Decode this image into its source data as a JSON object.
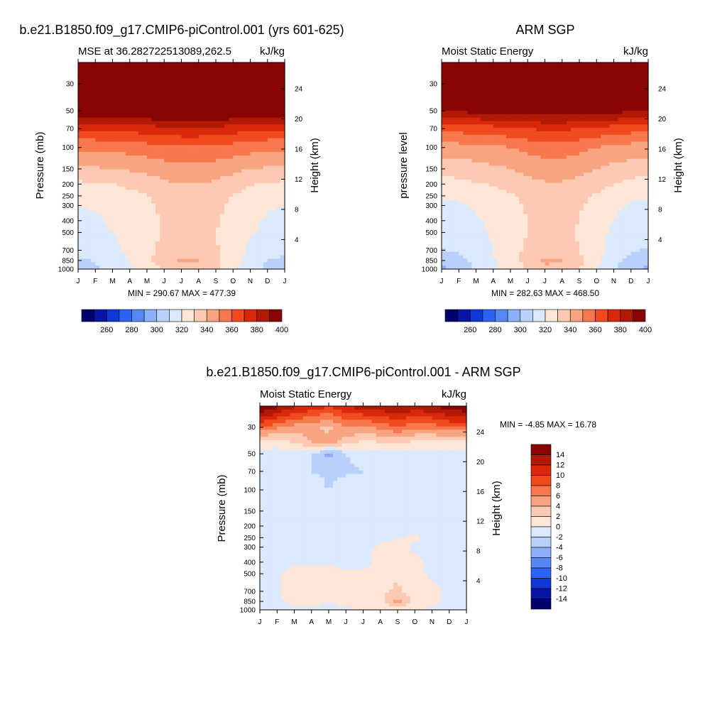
{
  "chart_data": [
    {
      "type": "heatmap",
      "title": "b.e21.B1850.f09_g17.CMIP6-piControl.001 (yrs 601-625)",
      "left_subtitle": "MSE at 36.282722513089,262.5",
      "right_subtitle": "kJ/kg",
      "ylabel": "Pressure (mb)",
      "ylabel_right": "Height (km)",
      "x_ticks": [
        "J",
        "F",
        "M",
        "A",
        "M",
        "J",
        "J",
        "A",
        "S",
        "O",
        "N",
        "D",
        "J"
      ],
      "y_ticks": [
        30,
        50,
        70,
        100,
        150,
        200,
        250,
        300,
        400,
        500,
        700,
        850,
        1000
      ],
      "y_ticks_right": [
        24,
        20,
        16,
        12,
        8,
        4
      ],
      "ylim": [
        1000,
        20
      ],
      "stats": "MIN = 290.67 MAX = 477.39",
      "colorbar_ticks": [
        260,
        280,
        300,
        320,
        340,
        360,
        380,
        400
      ],
      "colorbar_colors": [
        "#02006b",
        "#0a15a6",
        "#1336d6",
        "#2b63f2",
        "#5588f5",
        "#8daff8",
        "#b9d0fb",
        "#dbe9fc",
        "#fde6d8",
        "#fccab2",
        "#f9a480",
        "#f7784d",
        "#f04a1e",
        "#d9280b",
        "#b01a04",
        "#880503"
      ],
      "rows_by_pressure": [
        {
          "p": 1000,
          "v": [
            306,
            308,
            314,
            318,
            326,
            331,
            338,
            338,
            331,
            322,
            314,
            308,
            306
          ]
        },
        {
          "p": 850,
          "v": [
            308,
            311,
            315,
            320,
            328,
            335,
            341,
            340,
            333,
            325,
            316,
            310,
            308
          ]
        },
        {
          "p": 700,
          "v": [
            313,
            315,
            318,
            322,
            327,
            333,
            336,
            336,
            331,
            325,
            318,
            314,
            313
          ]
        },
        {
          "p": 500,
          "v": [
            317,
            318,
            320,
            323,
            326,
            331,
            332,
            332,
            330,
            326,
            321,
            318,
            317
          ]
        },
        {
          "p": 400,
          "v": [
            318,
            319,
            321,
            324,
            327,
            331,
            333,
            333,
            331,
            327,
            322,
            319,
            318
          ]
        },
        {
          "p": 300,
          "v": [
            320,
            321,
            322,
            325,
            328,
            332,
            334,
            334,
            332,
            328,
            324,
            321,
            320
          ]
        },
        {
          "p": 250,
          "v": [
            322,
            323,
            325,
            327,
            330,
            334,
            336,
            336,
            334,
            330,
            326,
            323,
            322
          ]
        },
        {
          "p": 200,
          "v": [
            328,
            329,
            330,
            332,
            335,
            338,
            340,
            340,
            338,
            335,
            331,
            329,
            328
          ]
        },
        {
          "p": 150,
          "v": [
            338,
            339,
            340,
            341,
            343,
            345,
            347,
            347,
            345,
            343,
            340,
            339,
            338
          ]
        },
        {
          "p": 100,
          "v": [
            352,
            352,
            353,
            354,
            356,
            358,
            359,
            359,
            358,
            356,
            354,
            352,
            352
          ]
        },
        {
          "p": 70,
          "v": [
            372,
            372,
            373,
            374,
            375,
            377,
            378,
            378,
            377,
            375,
            373,
            372,
            372
          ]
        },
        {
          "p": 50,
          "v": [
            400,
            400,
            401,
            402,
            403,
            404,
            405,
            405,
            404,
            403,
            401,
            400,
            400
          ]
        },
        {
          "p": 30,
          "v": [
            440,
            440,
            441,
            442,
            443,
            444,
            445,
            445,
            444,
            443,
            441,
            440,
            440
          ]
        },
        {
          "p": 20,
          "v": [
            470,
            470,
            471,
            472,
            473,
            474,
            475,
            475,
            474,
            473,
            471,
            470,
            470
          ]
        }
      ]
    },
    {
      "type": "heatmap",
      "title": "ARM SGP",
      "left_subtitle": "Moist Static Energy",
      "right_subtitle": "kJ/kg",
      "ylabel": "pressure level",
      "ylabel_right": "Height (km)",
      "x_ticks": [
        "J",
        "F",
        "M",
        "A",
        "M",
        "J",
        "J",
        "A",
        "S",
        "O",
        "N",
        "D",
        "J"
      ],
      "y_ticks": [
        30,
        50,
        70,
        100,
        150,
        200,
        250,
        300,
        400,
        500,
        700,
        850,
        1000
      ],
      "y_ticks_right": [
        24,
        20,
        16,
        12,
        8,
        4
      ],
      "ylim": [
        1000,
        20
      ],
      "stats": "MIN = 282.63 MAX = 468.50",
      "colorbar_ticks": [
        260,
        280,
        300,
        320,
        340,
        360,
        380,
        400
      ],
      "colorbar_colors": [
        "#02006b",
        "#0a15a6",
        "#1336d6",
        "#2b63f2",
        "#5588f5",
        "#8daff8",
        "#b9d0fb",
        "#dbe9fc",
        "#fde6d8",
        "#fccab2",
        "#f9a480",
        "#f7784d",
        "#f04a1e",
        "#d9280b",
        "#b01a04",
        "#880503"
      ],
      "rows_by_pressure": [
        {
          "p": 1000,
          "v": [
            298,
            302,
            312,
            318,
            324,
            330,
            338,
            336,
            330,
            320,
            310,
            304,
            298
          ]
        },
        {
          "p": 850,
          "v": [
            302,
            306,
            313,
            319,
            326,
            334,
            342,
            341,
            333,
            323,
            314,
            306,
            302
          ]
        },
        {
          "p": 700,
          "v": [
            309,
            312,
            316,
            320,
            326,
            332,
            335,
            335,
            330,
            323,
            316,
            311,
            309
          ]
        },
        {
          "p": 500,
          "v": [
            314,
            316,
            318,
            321,
            325,
            330,
            332,
            332,
            329,
            324,
            318,
            315,
            314
          ]
        },
        {
          "p": 400,
          "v": [
            316,
            317,
            319,
            322,
            326,
            330,
            332,
            332,
            330,
            325,
            320,
            317,
            316
          ]
        },
        {
          "p": 300,
          "v": [
            318,
            319,
            321,
            324,
            327,
            331,
            333,
            333,
            331,
            327,
            322,
            319,
            318
          ]
        },
        {
          "p": 250,
          "v": [
            321,
            322,
            324,
            326,
            329,
            333,
            335,
            335,
            333,
            329,
            325,
            322,
            321
          ]
        },
        {
          "p": 200,
          "v": [
            326,
            327,
            329,
            331,
            334,
            337,
            339,
            339,
            337,
            334,
            330,
            327,
            326
          ]
        },
        {
          "p": 150,
          "v": [
            334,
            335,
            336,
            338,
            340,
            343,
            345,
            345,
            343,
            340,
            337,
            335,
            334
          ]
        },
        {
          "p": 100,
          "v": [
            346,
            346,
            347,
            348,
            350,
            353,
            355,
            355,
            353,
            350,
            348,
            346,
            346
          ]
        },
        {
          "p": 70,
          "v": [
            364,
            364,
            365,
            366,
            368,
            370,
            372,
            372,
            370,
            368,
            366,
            364,
            364
          ]
        },
        {
          "p": 50,
          "v": [
            392,
            392,
            393,
            394,
            395,
            396,
            397,
            397,
            396,
            395,
            393,
            392,
            392
          ]
        },
        {
          "p": 30,
          "v": [
            430,
            430,
            431,
            432,
            433,
            434,
            435,
            435,
            434,
            433,
            431,
            430,
            430
          ]
        },
        {
          "p": 20,
          "v": [
            460,
            460,
            461,
            462,
            463,
            464,
            465,
            465,
            464,
            463,
            461,
            460,
            460
          ]
        }
      ]
    },
    {
      "type": "heatmap",
      "title": "b.e21.B1850.f09_g17.CMIP6-piControl.001 - ARM SGP",
      "left_subtitle": "Moist Static Energy",
      "right_subtitle": "kJ/kg",
      "ylabel": "Pressure (mb)",
      "ylabel_right": "Height (km)",
      "x_ticks": [
        "J",
        "F",
        "M",
        "A",
        "M",
        "J",
        "J",
        "A",
        "S",
        "O",
        "N",
        "D",
        "J"
      ],
      "y_ticks": [
        30,
        50,
        70,
        100,
        150,
        200,
        250,
        300,
        400,
        500,
        700,
        850,
        1000
      ],
      "y_ticks_right": [
        24,
        20,
        16,
        12,
        8,
        4
      ],
      "ylim": [
        1000,
        20
      ],
      "stats": "MIN =  -4.85 MAX =  16.78",
      "colorbar_ticks": [
        14,
        12,
        10,
        8,
        6,
        4,
        2,
        0,
        -2,
        -4,
        -6,
        -8,
        -10,
        -12,
        -14
      ],
      "colorbar_colors": [
        "#880503",
        "#b01a04",
        "#d9280b",
        "#f04a1e",
        "#f7784d",
        "#f9a480",
        "#fccab2",
        "#fde6d8",
        "#dbe9fc",
        "#b9d0fb",
        "#8daff8",
        "#5588f5",
        "#2b63f2",
        "#1336d6",
        "#0a15a6",
        "#02006b"
      ],
      "rows_by_pressure": [
        {
          "p": 1000,
          "v": [
            -1.5,
            -1.0,
            -0.5,
            -0.5,
            -1.5,
            -0.5,
            0.5,
            0.8,
            1.2,
            0.8,
            -0.5,
            -1.0,
            -1.5
          ]
        },
        {
          "p": 850,
          "v": [
            -1.0,
            -0.5,
            0.5,
            1.0,
            0.5,
            1.0,
            0.5,
            1.5,
            4.5,
            1.5,
            0.5,
            -0.5,
            -1.0
          ]
        },
        {
          "p": 700,
          "v": [
            -0.5,
            -0.5,
            1.5,
            1.8,
            1.5,
            0.8,
            0.5,
            1.5,
            2.5,
            1.0,
            0.5,
            -0.5,
            -0.5
          ]
        },
        {
          "p": 500,
          "v": [
            -0.5,
            -0.3,
            0.5,
            1.0,
            0.5,
            0.5,
            0.3,
            1.0,
            1.5,
            0.5,
            -0.3,
            -0.5,
            -0.5
          ]
        },
        {
          "p": 400,
          "v": [
            -0.5,
            -0.3,
            -0.3,
            -0.5,
            -0.3,
            -0.5,
            -0.5,
            0.5,
            1.5,
            0.3,
            -0.3,
            -0.5,
            -0.5
          ]
        },
        {
          "p": 300,
          "v": [
            -0.5,
            -0.5,
            -0.5,
            -0.5,
            -0.5,
            -0.5,
            -0.5,
            0.3,
            1.0,
            -0.3,
            -0.5,
            -0.5,
            -0.5
          ]
        },
        {
          "p": 250,
          "v": [
            -0.5,
            -0.5,
            -0.5,
            -0.5,
            -0.5,
            -0.5,
            -0.5,
            -0.5,
            -0.3,
            0.3,
            -0.5,
            -0.5,
            -0.5
          ]
        },
        {
          "p": 200,
          "v": [
            -1.0,
            -0.5,
            -1.0,
            -2.1,
            -1.0,
            -0.5,
            -0.5,
            -0.3,
            -0.5,
            -0.5,
            -0.5,
            -1.0,
            -1.0
          ]
        },
        {
          "p": 150,
          "v": [
            -2.1,
            -0.5,
            -2.1,
            -1.0,
            -2.1,
            -1.0,
            -0.5,
            -0.5,
            -2.1,
            -0.5,
            -0.5,
            -2.1,
            -2.1
          ]
        },
        {
          "p": 100,
          "v": [
            -0.5,
            -0.5,
            -1.0,
            -0.5,
            -2.1,
            -1.0,
            -0.5,
            -0.3,
            -0.5,
            -1.0,
            -0.5,
            -0.5,
            -0.5
          ]
        },
        {
          "p": 70,
          "v": [
            -0.5,
            -0.5,
            -1.0,
            -2.1,
            -2.5,
            -2.3,
            -2.1,
            -0.5,
            -0.5,
            -0.5,
            -0.5,
            -0.5,
            -0.5
          ]
        },
        {
          "p": 50,
          "v": [
            -0.5,
            -0.5,
            -1.0,
            -2.1,
            -4.8,
            -2.1,
            -1.0,
            -0.5,
            -0.5,
            -0.5,
            -0.5,
            -0.5,
            -0.5
          ]
        },
        {
          "p": 40,
          "v": [
            1.0,
            0.5,
            2.5,
            4.0,
            5.0,
            3.0,
            1.5,
            2.0,
            2.5,
            1.5,
            1.0,
            1.0,
            1.0
          ]
        },
        {
          "p": 30,
          "v": [
            8.0,
            6.5,
            5.0,
            4.5,
            3.5,
            6.0,
            5.5,
            6.5,
            8.0,
            6.5,
            7.0,
            8.0,
            8.0
          ]
        },
        {
          "p": 20,
          "v": [
            16.78,
            14.5,
            12.5,
            11.5,
            10.0,
            12.0,
            13.0,
            13.5,
            14.0,
            13.5,
            14.0,
            15.5,
            16.0
          ]
        }
      ]
    }
  ]
}
